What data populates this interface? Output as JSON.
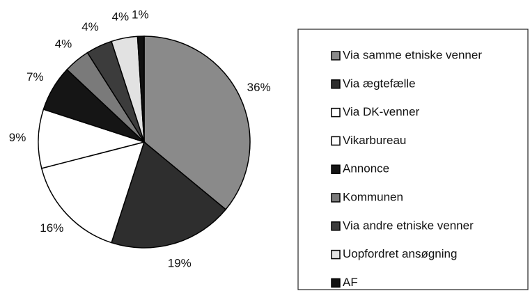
{
  "chart_data": {
    "type": "pie",
    "categories": [
      "Via samme etniske venner",
      "Via ægtefælle",
      "Via DK-venner",
      "Vikarbureau",
      "Annonce",
      "Kommunen",
      "Via andre etniske venner",
      "Uopfordret ansøgning",
      "AF"
    ],
    "values": [
      36,
      19,
      16,
      9,
      7,
      4,
      4,
      4,
      1
    ],
    "value_labels": [
      "36%",
      "19%",
      "16%",
      "9%",
      "7%",
      "4%",
      "4%",
      "4%",
      "1%"
    ],
    "colors": [
      "#8a8a8a",
      "#2e2e2e",
      "#ffffff",
      "#ffffff",
      "#151515",
      "#7a7a7a",
      "#3c3c3c",
      "#e2e2e2",
      "#101010"
    ],
    "legend": "right"
  }
}
